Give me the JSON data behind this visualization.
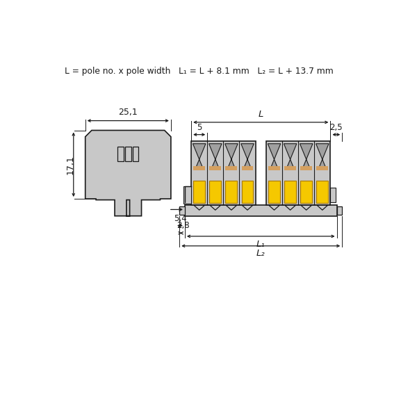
{
  "bg_color": "#ffffff",
  "line_color": "#1a1a1a",
  "gray_fill": "#c8c8c8",
  "gray_dark": "#b0b0b0",
  "yellow_color": "#f5c800",
  "orange_tan": "#d4a060",
  "title_text": "L = pole no. x pole width   L₁ = L + 8.1 mm   L₂ = L + 13.7 mm",
  "dim_25_1": "25,1",
  "dim_17_1": "17,1",
  "dim_5": "5",
  "dim_2_5": "2,5",
  "dim_5_4": "5,4",
  "dim_2_8": "2,8",
  "dim_L": "L",
  "dim_L1": "L₁",
  "dim_L2": "L₂"
}
